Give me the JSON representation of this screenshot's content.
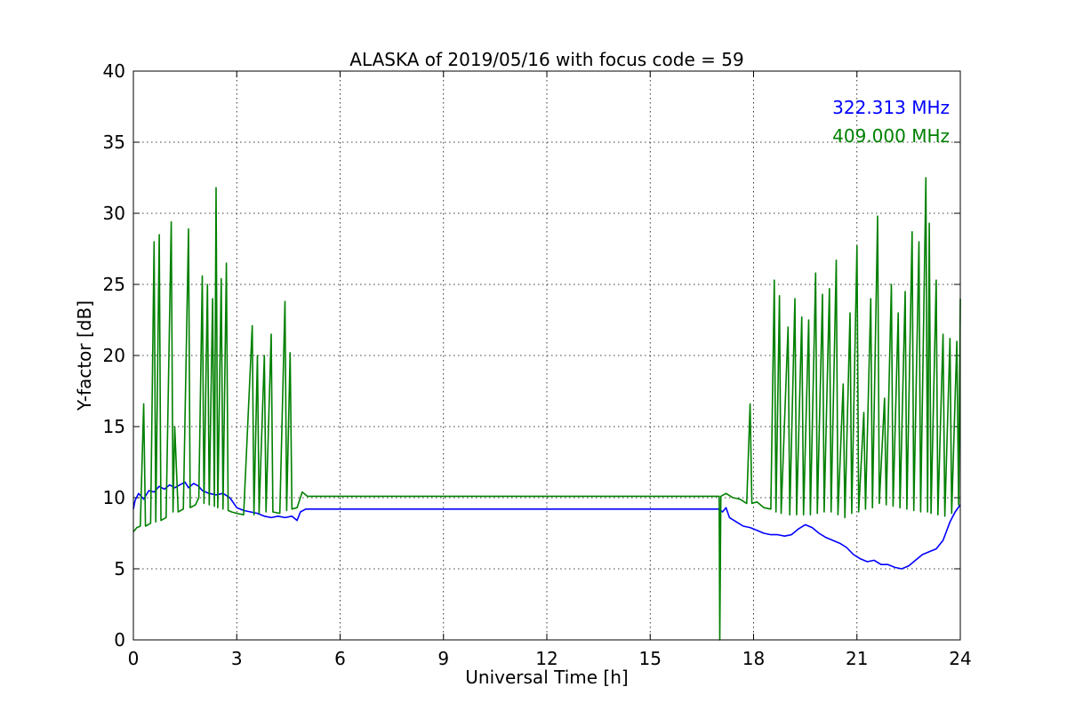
{
  "chart_data": {
    "type": "line",
    "title": "ALASKA of 2019/05/16 with focus code = 59",
    "xlabel": "Universal Time [h]",
    "ylabel": "Y-factor [dB]",
    "xlim": [
      0,
      24
    ],
    "ylim": [
      0,
      40
    ],
    "x_ticks": [
      0,
      3,
      6,
      9,
      12,
      15,
      18,
      21,
      24
    ],
    "y_ticks": [
      0,
      5,
      10,
      15,
      20,
      25,
      30,
      35,
      40
    ],
    "grid": true,
    "legend_position": "top-right",
    "series": [
      {
        "name": "322.313 MHz",
        "color": "#0000ff",
        "points": [
          [
            0.0,
            9.2
          ],
          [
            0.05,
            9.8
          ],
          [
            0.15,
            10.3
          ],
          [
            0.3,
            9.9
          ],
          [
            0.45,
            10.5
          ],
          [
            0.6,
            10.4
          ],
          [
            0.75,
            10.8
          ],
          [
            0.9,
            10.6
          ],
          [
            1.05,
            10.9
          ],
          [
            1.2,
            10.7
          ],
          [
            1.35,
            10.9
          ],
          [
            1.5,
            11.1
          ],
          [
            1.6,
            10.7
          ],
          [
            1.75,
            11.0
          ],
          [
            1.9,
            10.8
          ],
          [
            2.0,
            10.5
          ],
          [
            2.2,
            10.3
          ],
          [
            2.4,
            10.2
          ],
          [
            2.6,
            10.3
          ],
          [
            2.8,
            10.0
          ],
          [
            3.0,
            9.3
          ],
          [
            3.2,
            9.1
          ],
          [
            3.4,
            9.0
          ],
          [
            3.6,
            8.9
          ],
          [
            3.8,
            8.7
          ],
          [
            4.0,
            8.6
          ],
          [
            4.2,
            8.7
          ],
          [
            4.4,
            8.6
          ],
          [
            4.6,
            8.7
          ],
          [
            4.75,
            8.4
          ],
          [
            4.85,
            9.0
          ],
          [
            5.0,
            9.2
          ],
          [
            5.05,
            9.2
          ],
          [
            17.0,
            9.2
          ],
          [
            17.1,
            9.0
          ],
          [
            17.2,
            9.3
          ],
          [
            17.3,
            8.6
          ],
          [
            17.5,
            8.3
          ],
          [
            17.7,
            8.0
          ],
          [
            17.9,
            7.9
          ],
          [
            18.1,
            7.7
          ],
          [
            18.3,
            7.5
          ],
          [
            18.5,
            7.4
          ],
          [
            18.7,
            7.4
          ],
          [
            18.9,
            7.3
          ],
          [
            19.1,
            7.4
          ],
          [
            19.3,
            7.8
          ],
          [
            19.5,
            8.1
          ],
          [
            19.7,
            7.9
          ],
          [
            19.9,
            7.5
          ],
          [
            20.1,
            7.2
          ],
          [
            20.3,
            7.0
          ],
          [
            20.5,
            6.8
          ],
          [
            20.7,
            6.5
          ],
          [
            20.9,
            6.0
          ],
          [
            21.1,
            5.7
          ],
          [
            21.3,
            5.5
          ],
          [
            21.5,
            5.6
          ],
          [
            21.7,
            5.3
          ],
          [
            21.9,
            5.3
          ],
          [
            22.1,
            5.1
          ],
          [
            22.3,
            5.0
          ],
          [
            22.5,
            5.2
          ],
          [
            22.7,
            5.6
          ],
          [
            22.9,
            6.0
          ],
          [
            23.1,
            6.2
          ],
          [
            23.3,
            6.4
          ],
          [
            23.5,
            7.0
          ],
          [
            23.7,
            8.3
          ],
          [
            23.85,
            9.0
          ],
          [
            24.0,
            9.5
          ]
        ]
      },
      {
        "name": "409.000 MHz",
        "color": "#008000",
        "points": [
          [
            0.0,
            7.6
          ],
          [
            0.1,
            7.9
          ],
          [
            0.2,
            8.0
          ],
          [
            0.3,
            16.6
          ],
          [
            0.35,
            8.0
          ],
          [
            0.5,
            8.2
          ],
          [
            0.6,
            28.0
          ],
          [
            0.65,
            8.3
          ],
          [
            0.75,
            28.5
          ],
          [
            0.8,
            8.4
          ],
          [
            0.95,
            8.6
          ],
          [
            1.1,
            29.4
          ],
          [
            1.15,
            9.0
          ],
          [
            1.2,
            15.0
          ],
          [
            1.3,
            9.0
          ],
          [
            1.45,
            9.2
          ],
          [
            1.6,
            28.9
          ],
          [
            1.65,
            9.3
          ],
          [
            1.8,
            9.5
          ],
          [
            1.9,
            10.0
          ],
          [
            2.0,
            25.6
          ],
          [
            2.05,
            9.6
          ],
          [
            2.15,
            25.0
          ],
          [
            2.2,
            9.5
          ],
          [
            2.3,
            24.0
          ],
          [
            2.35,
            9.4
          ],
          [
            2.4,
            31.8
          ],
          [
            2.45,
            9.3
          ],
          [
            2.55,
            25.4
          ],
          [
            2.6,
            9.2
          ],
          [
            2.7,
            26.5
          ],
          [
            2.75,
            9.1
          ],
          [
            2.85,
            9.0
          ],
          [
            3.0,
            8.9
          ],
          [
            3.2,
            8.8
          ],
          [
            3.45,
            22.1
          ],
          [
            3.5,
            8.8
          ],
          [
            3.6,
            20.0
          ],
          [
            3.65,
            8.9
          ],
          [
            3.8,
            20.0
          ],
          [
            3.85,
            9.0
          ],
          [
            4.0,
            21.5
          ],
          [
            4.05,
            9.0
          ],
          [
            4.25,
            8.9
          ],
          [
            4.4,
            23.8
          ],
          [
            4.45,
            9.1
          ],
          [
            4.55,
            20.2
          ],
          [
            4.6,
            9.2
          ],
          [
            4.75,
            9.3
          ],
          [
            4.9,
            10.4
          ],
          [
            5.0,
            10.2
          ],
          [
            5.05,
            10.1
          ],
          [
            17.0,
            10.1
          ],
          [
            17.02,
            0.0
          ],
          [
            17.05,
            10.1
          ],
          [
            17.2,
            10.3
          ],
          [
            17.4,
            10.0
          ],
          [
            17.6,
            9.9
          ],
          [
            17.8,
            9.6
          ],
          [
            17.9,
            16.6
          ],
          [
            17.95,
            9.6
          ],
          [
            18.1,
            9.7
          ],
          [
            18.3,
            9.3
          ],
          [
            18.5,
            9.2
          ],
          [
            18.6,
            25.3
          ],
          [
            18.65,
            9.0
          ],
          [
            18.75,
            24.2
          ],
          [
            18.8,
            8.9
          ],
          [
            19.0,
            22.0
          ],
          [
            19.05,
            8.8
          ],
          [
            19.2,
            24.0
          ],
          [
            19.25,
            8.8
          ],
          [
            19.4,
            22.7
          ],
          [
            19.45,
            8.8
          ],
          [
            19.6,
            22.5
          ],
          [
            19.65,
            8.8
          ],
          [
            19.8,
            25.8
          ],
          [
            19.85,
            8.9
          ],
          [
            20.0,
            24.3
          ],
          [
            20.05,
            9.0
          ],
          [
            20.2,
            24.7
          ],
          [
            20.25,
            9.0
          ],
          [
            20.4,
            26.7
          ],
          [
            20.45,
            8.8
          ],
          [
            20.6,
            18.0
          ],
          [
            20.65,
            8.6
          ],
          [
            20.8,
            23.0
          ],
          [
            20.85,
            8.9
          ],
          [
            21.0,
            27.7
          ],
          [
            21.05,
            9.0
          ],
          [
            21.2,
            16.0
          ],
          [
            21.25,
            9.2
          ],
          [
            21.4,
            24.0
          ],
          [
            21.45,
            9.3
          ],
          [
            21.6,
            29.8
          ],
          [
            21.65,
            9.6
          ],
          [
            21.8,
            17.0
          ],
          [
            21.85,
            9.5
          ],
          [
            22.0,
            25.0
          ],
          [
            22.05,
            9.4
          ],
          [
            22.2,
            23.0
          ],
          [
            22.25,
            9.3
          ],
          [
            22.4,
            24.5
          ],
          [
            22.45,
            9.2
          ],
          [
            22.6,
            28.7
          ],
          [
            22.65,
            9.1
          ],
          [
            22.8,
            28.0
          ],
          [
            22.85,
            9.0
          ],
          [
            23.0,
            32.5
          ],
          [
            23.05,
            9.0
          ],
          [
            23.1,
            29.3
          ],
          [
            23.15,
            8.9
          ],
          [
            23.3,
            25.3
          ],
          [
            23.35,
            8.8
          ],
          [
            23.5,
            21.5
          ],
          [
            23.55,
            8.7
          ],
          [
            23.7,
            21.2
          ],
          [
            23.75,
            8.9
          ],
          [
            23.9,
            21.0
          ],
          [
            23.95,
            9.5
          ],
          [
            24.0,
            24.0
          ]
        ]
      }
    ]
  }
}
